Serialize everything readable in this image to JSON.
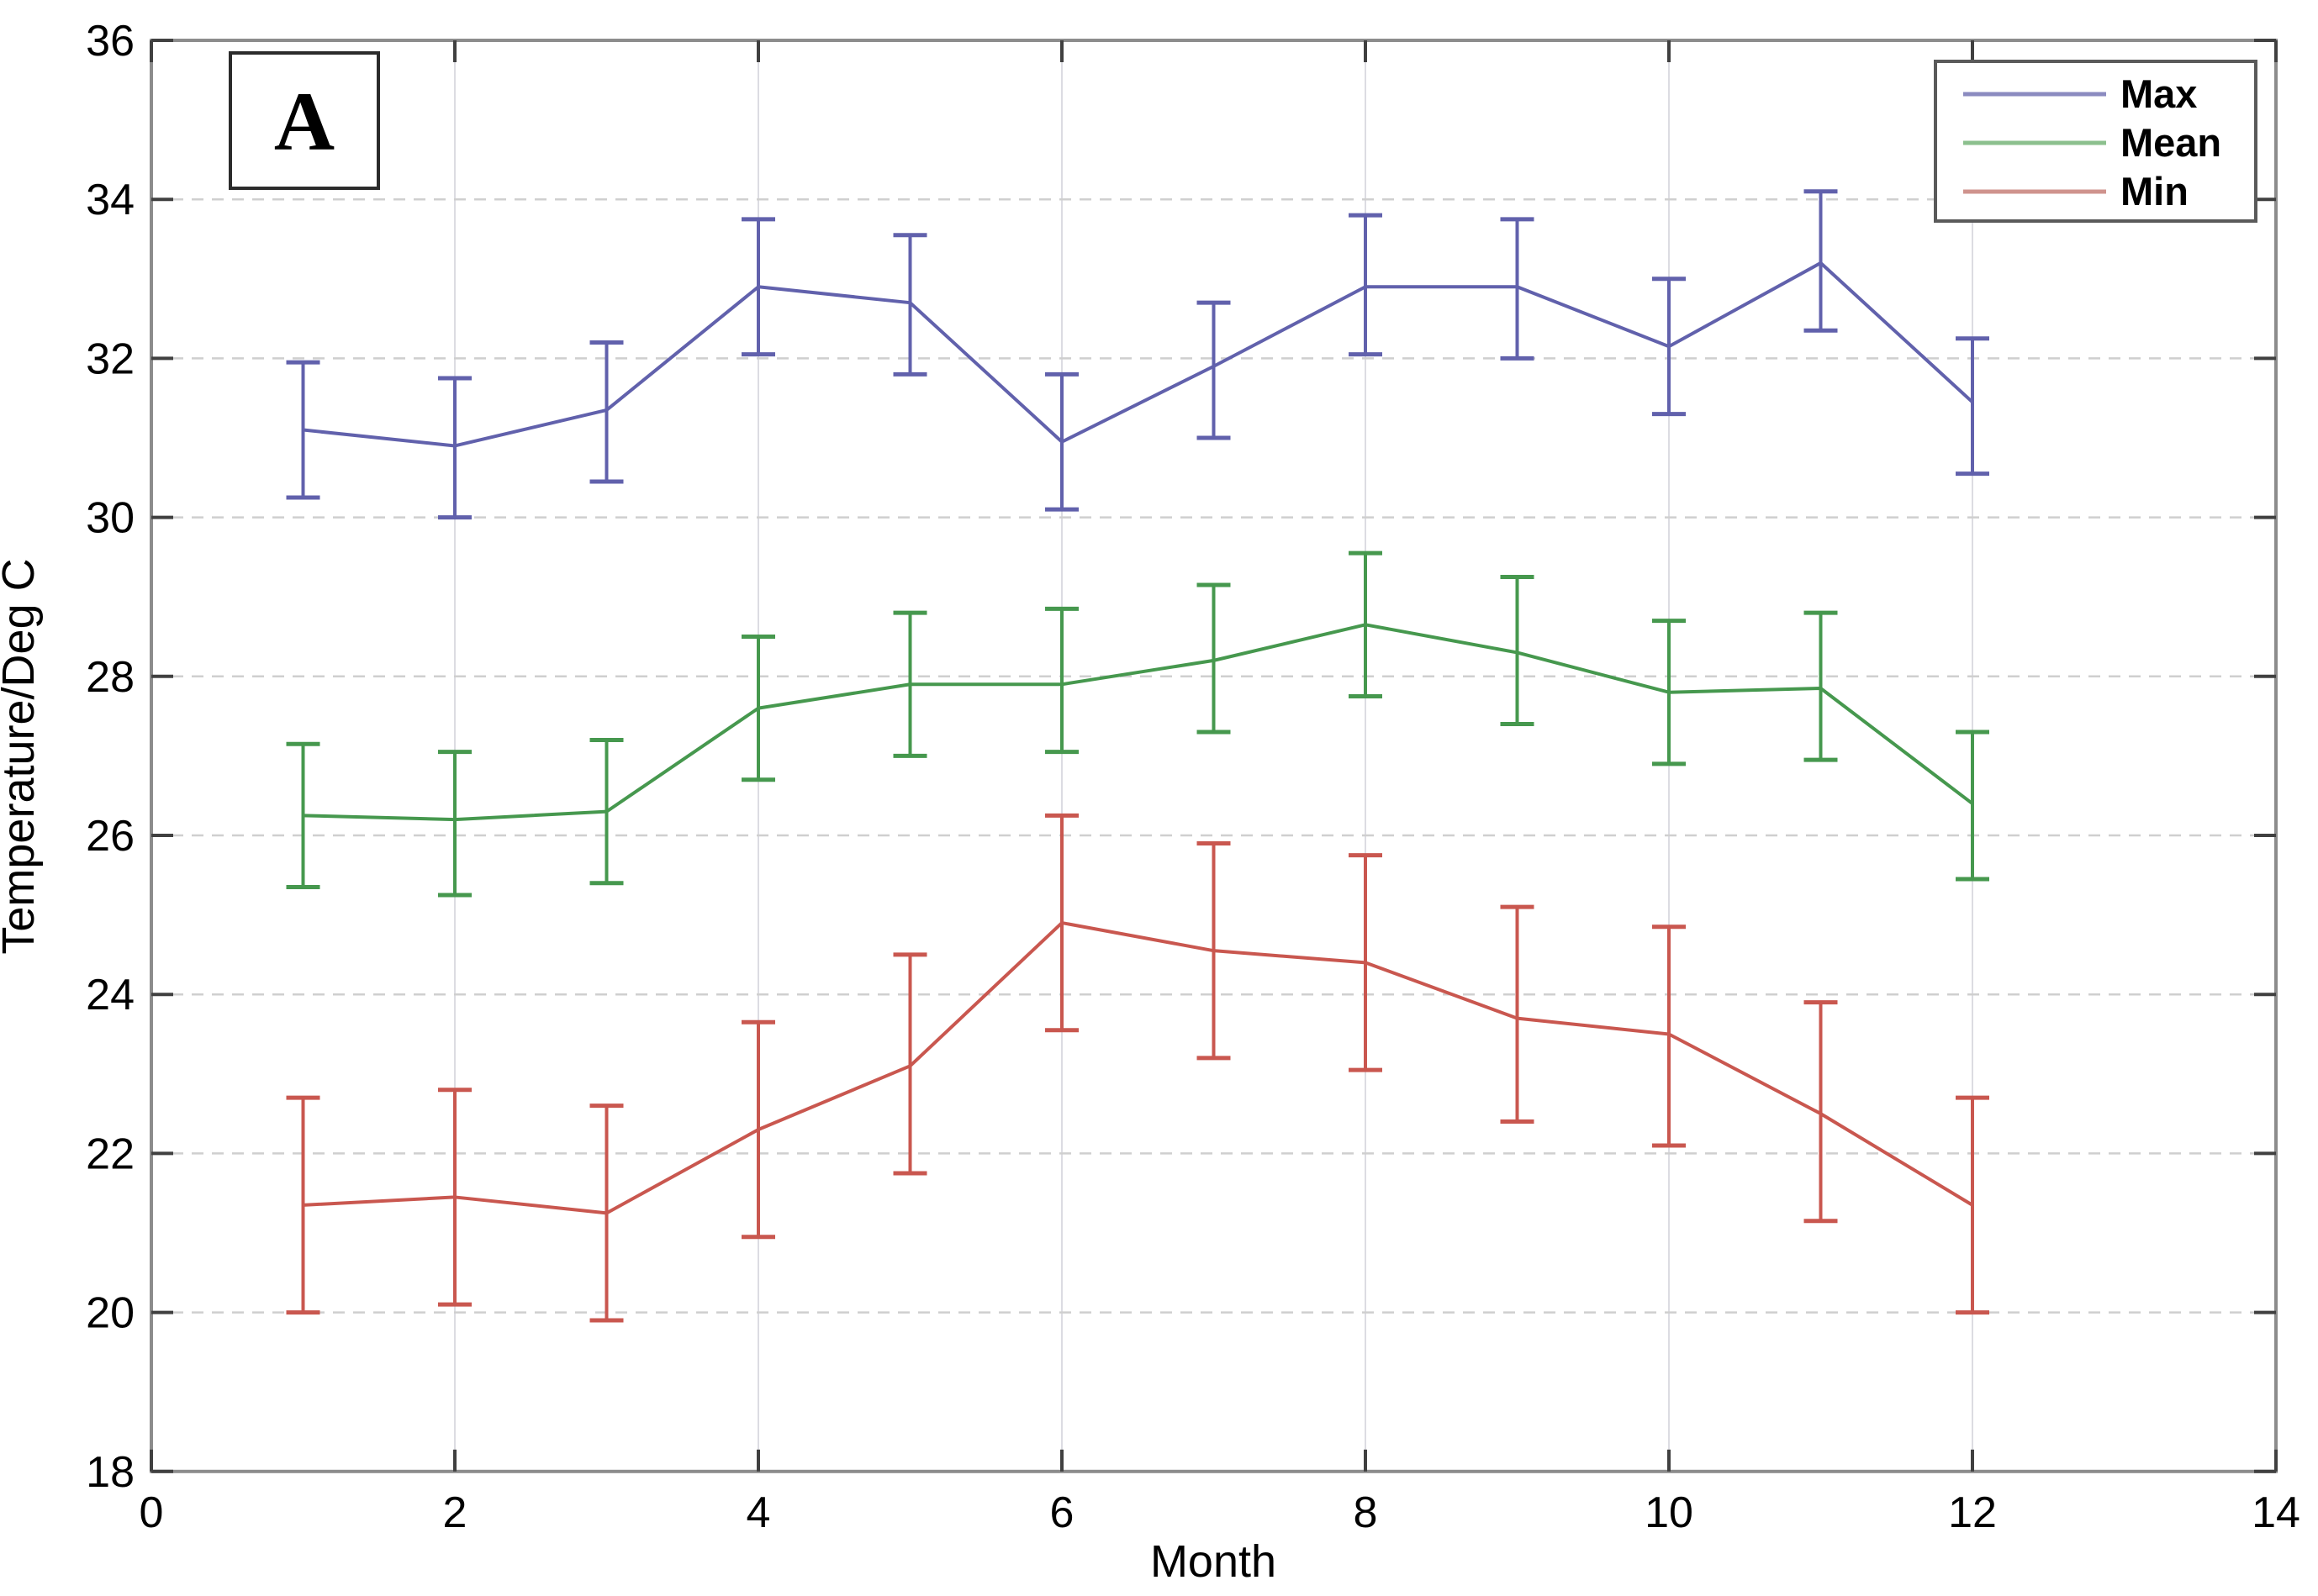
{
  "figure": {
    "panel_label": "A",
    "background": "#ffffff"
  },
  "styles": {
    "frame_color": "#8c8c8c",
    "tick_color": "#404040",
    "grid_h_color": "#cfcfcf",
    "grid_v_color": "#dcdce2",
    "text_color": "#000000",
    "panel_box_border": "#2b2b2b",
    "legend_border": "#5a5a5a"
  },
  "chart_data": {
    "type": "line",
    "title": "",
    "xlabel": "Month",
    "ylabel": "Temperature/Deg C",
    "xlim": [
      0,
      14
    ],
    "ylim": [
      18,
      36
    ],
    "x_ticks": [
      0,
      2,
      4,
      6,
      8,
      10,
      12,
      14
    ],
    "y_ticks": [
      18,
      20,
      22,
      24,
      26,
      28,
      30,
      32,
      34,
      36
    ],
    "grid": {
      "horizontal_style": "dashed",
      "vertical_style": "solid",
      "h_values": [
        20,
        22,
        24,
        26,
        28,
        30,
        32,
        34
      ],
      "v_values": [
        2,
        4,
        6,
        8,
        10,
        12
      ]
    },
    "legend": {
      "position": "top-right",
      "entries": [
        "Max",
        "Mean",
        "Min"
      ]
    },
    "error_bars": true,
    "months": [
      1,
      2,
      3,
      4,
      5,
      6,
      7,
      8,
      9,
      10,
      11,
      12
    ],
    "series": [
      {
        "name": "Max",
        "color": "#6161ac",
        "legend_color": "#8b8bc0",
        "values": [
          31.1,
          30.9,
          31.35,
          32.9,
          32.7,
          30.95,
          31.9,
          32.9,
          32.9,
          32.15,
          33.2,
          31.45
        ],
        "err_lower": [
          30.25,
          30.0,
          30.45,
          32.05,
          31.8,
          30.1,
          31.0,
          32.05,
          32.0,
          31.3,
          32.35,
          30.55
        ],
        "err_upper": [
          31.95,
          31.75,
          32.2,
          33.75,
          33.55,
          31.8,
          32.7,
          33.8,
          33.75,
          33.0,
          34.1,
          32.25
        ]
      },
      {
        "name": "Mean",
        "color": "#46984e",
        "legend_color": "#8cc08e",
        "values": [
          26.25,
          26.2,
          26.3,
          27.6,
          27.9,
          27.9,
          28.2,
          28.65,
          28.3,
          27.8,
          27.85,
          26.4
        ],
        "err_lower": [
          25.35,
          25.25,
          25.4,
          26.7,
          27.0,
          27.05,
          27.3,
          27.75,
          27.4,
          26.9,
          26.95,
          25.45
        ],
        "err_upper": [
          27.15,
          27.05,
          27.2,
          28.5,
          28.8,
          28.85,
          29.15,
          29.55,
          29.25,
          28.7,
          28.8,
          27.3
        ]
      },
      {
        "name": "Min",
        "color": "#c9574f",
        "legend_color": "#cf938d",
        "values": [
          21.35,
          21.45,
          21.25,
          22.3,
          23.1,
          24.9,
          24.55,
          24.4,
          23.7,
          23.5,
          22.5,
          21.35
        ],
        "err_lower": [
          20.0,
          20.1,
          19.9,
          20.95,
          21.75,
          23.55,
          23.2,
          23.05,
          22.4,
          22.1,
          21.15,
          20.0
        ],
        "err_upper": [
          22.7,
          22.8,
          22.6,
          23.65,
          24.5,
          26.25,
          25.9,
          25.75,
          25.1,
          24.85,
          23.9,
          22.7
        ]
      }
    ]
  }
}
